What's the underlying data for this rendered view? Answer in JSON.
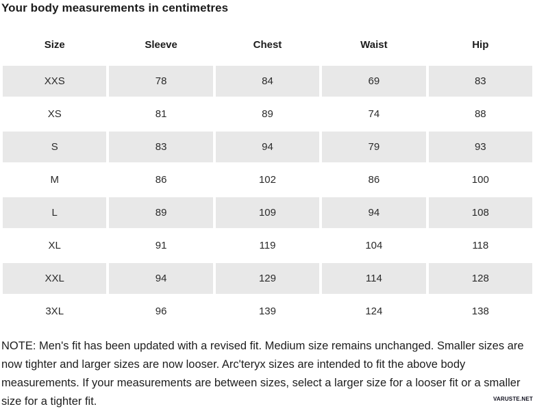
{
  "page": {
    "title": "Your body measurements in centimetres",
    "note": "NOTE: Men's fit has been updated with a revised fit. Medium size remains unchanged. Smaller sizes are now tighter and larger sizes are now looser. Arc'teryx sizes are intended to fit the above body measurements. If your measurements are between sizes, select a larger size for a looser fit or a smaller size for a tighter fit.",
    "watermark": "VARUSTE.NET"
  },
  "table": {
    "columns": [
      "Size",
      "Sleeve",
      "Chest",
      "Waist",
      "Hip"
    ],
    "rows": [
      {
        "size": "XXS",
        "values": [
          78,
          84,
          69,
          83
        ],
        "shaded": true
      },
      {
        "size": "XS",
        "values": [
          81,
          89,
          74,
          88
        ],
        "shaded": false
      },
      {
        "size": "S",
        "values": [
          83,
          94,
          79,
          93
        ],
        "shaded": true
      },
      {
        "size": "M",
        "values": [
          86,
          102,
          86,
          100
        ],
        "shaded": false
      },
      {
        "size": "L",
        "values": [
          89,
          109,
          94,
          108
        ],
        "shaded": true
      },
      {
        "size": "XL",
        "values": [
          91,
          119,
          104,
          118
        ],
        "shaded": false
      },
      {
        "size": "XXL",
        "values": [
          94,
          129,
          114,
          128
        ],
        "shaded": true
      },
      {
        "size": "3XL",
        "values": [
          96,
          139,
          124,
          138
        ],
        "shaded": false
      }
    ]
  },
  "colors": {
    "row_shade": "#e8e8e8",
    "text": "#1d1d1d",
    "background": "#ffffff"
  }
}
